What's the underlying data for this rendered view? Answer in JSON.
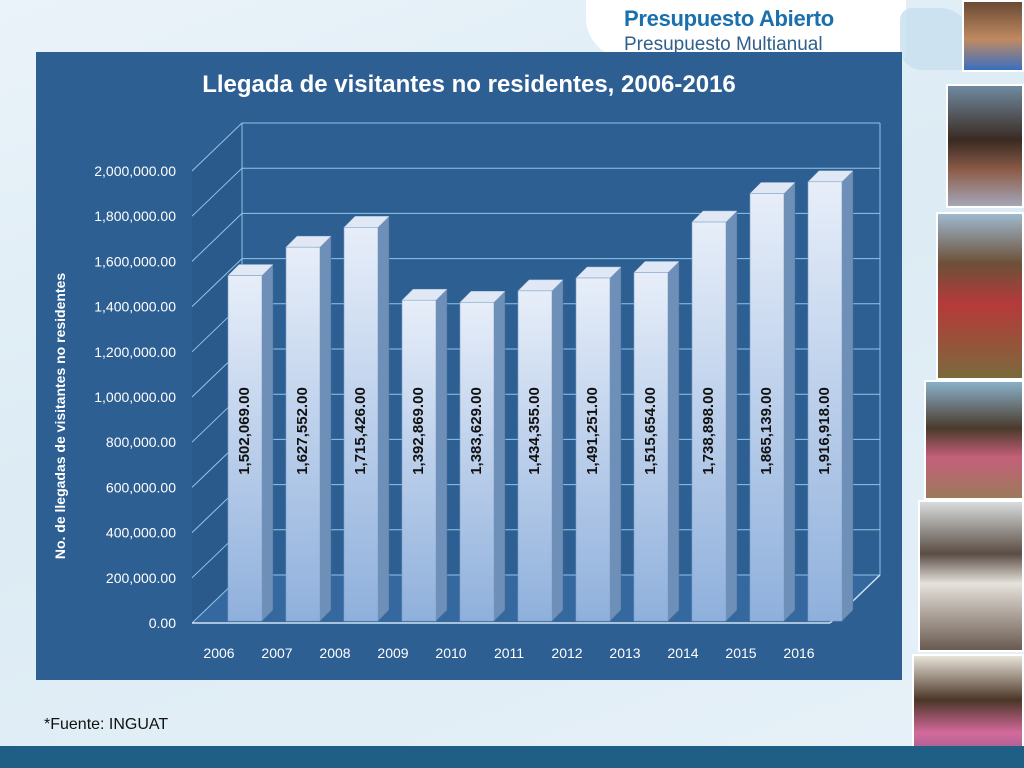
{
  "header": {
    "brand_title": "Presupuesto Abierto",
    "brand_subtitle": "Presupuesto Multianual"
  },
  "footer": {
    "source": "*Fuente: INGUAT"
  },
  "colors": {
    "panel_background": "#2d5f93",
    "bar_front": "#c9d9ef",
    "brand_blue": "#1a6fae",
    "bottom_band": "#1f5f86"
  },
  "chart_data": {
    "type": "bar",
    "title": "Llegada de visitantes no residentes, 2006-2016",
    "xlabel": "",
    "ylabel": "No. de llegadas de visitantes no residentes",
    "categories": [
      "2006",
      "2007",
      "2008",
      "2009",
      "2010",
      "2011",
      "2012",
      "2013",
      "2014",
      "2015",
      "2016"
    ],
    "values": [
      1502069,
      1627552,
      1715426,
      1392869,
      1383629,
      1434355,
      1491251,
      1515654,
      1738898,
      1865139,
      1916918
    ],
    "data_labels": [
      "1,502,069.00",
      "1,627,552.00",
      "1,715,426.00",
      "1,392,869.00",
      "1,383,629.00",
      "1,434,355.00",
      "1,491,251.00",
      "1,515,654.00",
      "1,738,898.00",
      "1,865,139.00",
      "1,916,918.00"
    ],
    "ytick_labels": [
      "0.00",
      "200,000.00",
      "400,000.00",
      "600,000.00",
      "800,000.00",
      "1,000,000.00",
      "1,200,000.00",
      "1,400,000.00",
      "1,600,000.00",
      "1,800,000.00",
      "2,000,000.00"
    ],
    "ylim": [
      0,
      2000000
    ],
    "style": "3d-column",
    "grid": true,
    "legend": "none"
  }
}
